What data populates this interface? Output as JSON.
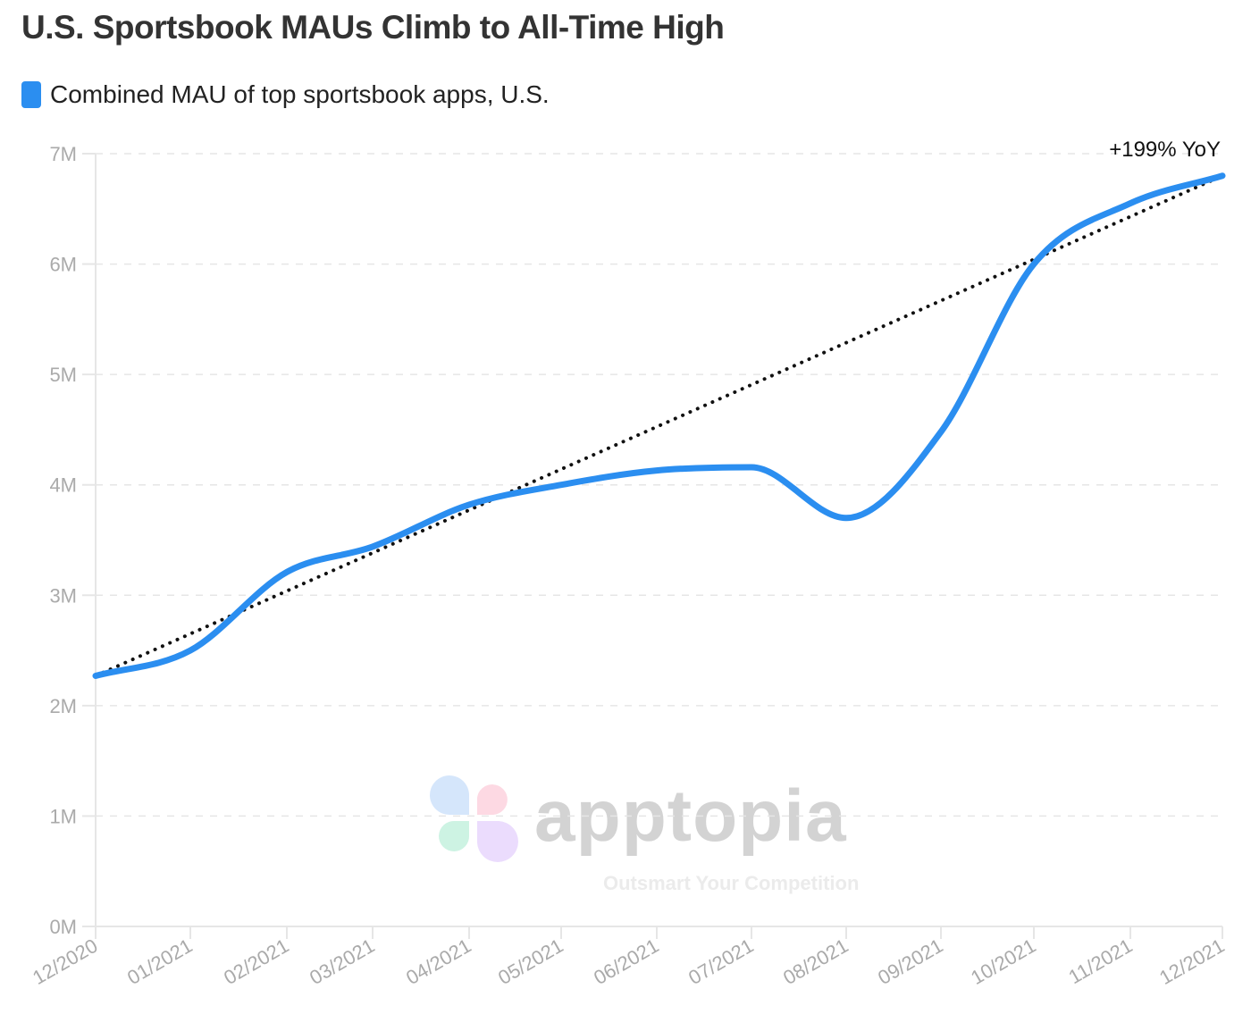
{
  "chart_data": {
    "type": "line",
    "title": "U.S. Sportsbook MAUs Climb to All-Time High",
    "xlabel": "",
    "ylabel": "",
    "categories": [
      "12/2020",
      "01/2021",
      "02/2021",
      "03/2021",
      "04/2021",
      "05/2021",
      "06/2021",
      "07/2021",
      "08/2021",
      "09/2021",
      "10/2021",
      "11/2021",
      "12/2021"
    ],
    "series": [
      {
        "name": "Combined MAU of top sportsbook apps, U.S.",
        "color": "#2b8ef0",
        "values": [
          2.27,
          2.5,
          3.21,
          3.44,
          3.82,
          4.0,
          4.13,
          4.16,
          3.7,
          4.48,
          6.0,
          6.55,
          6.8
        ]
      }
    ],
    "trendline": {
      "style": "dotted",
      "color": "#111111",
      "start": 2.27,
      "end": 6.8,
      "annotation": "+199% YoY"
    },
    "yticks": [
      "0M",
      "1M",
      "2M",
      "3M",
      "4M",
      "5M",
      "6M",
      "7M"
    ],
    "ylim": [
      0,
      7
    ],
    "grid": true,
    "legend_placement": "top-left"
  },
  "watermark": {
    "brand": "apptopia",
    "tagline": "Outsmart Your Competition"
  }
}
